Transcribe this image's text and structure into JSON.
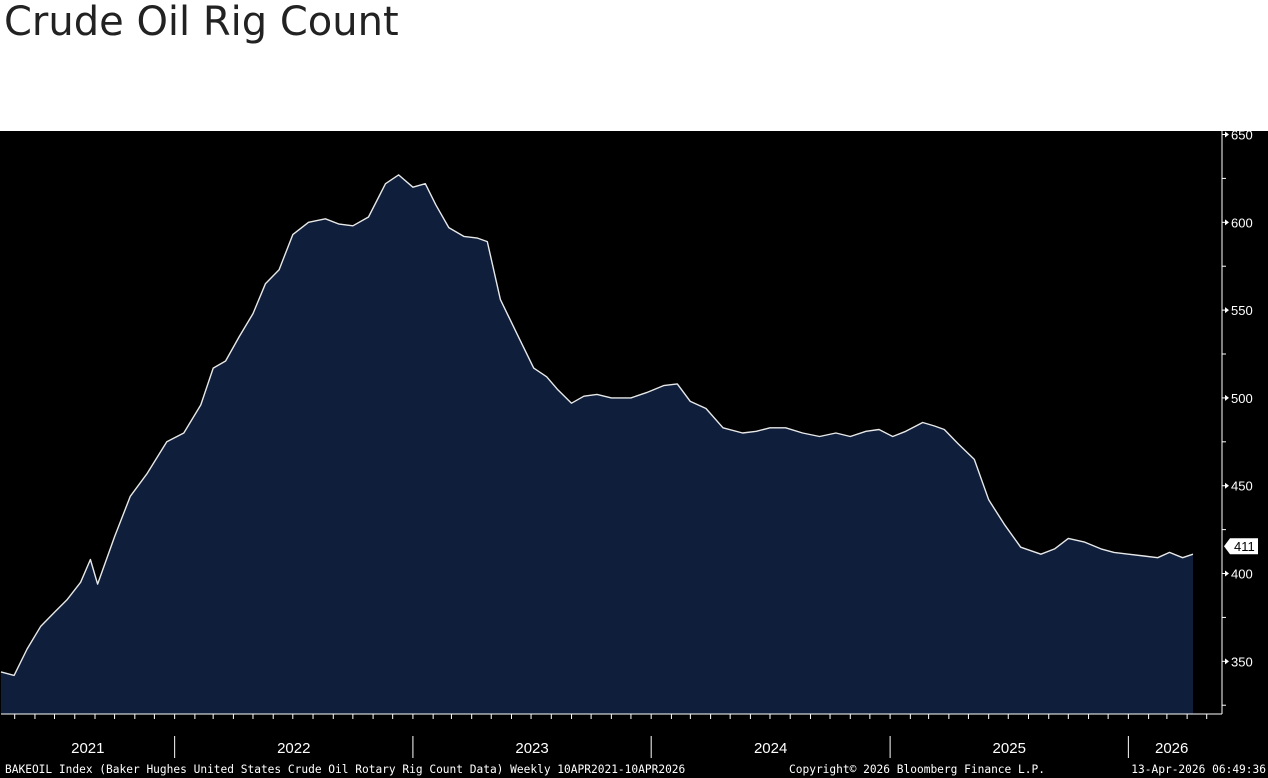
{
  "page": {
    "title": "Crude Oil Rig Count"
  },
  "footer": {
    "description": "BAKEOIL Index (Baker Hughes United States Crude Oil Rotary Rig Count Data) Weekly 10APR2021-10APR2026",
    "copyright": "Copyright© 2026 Bloomberg Finance L.P.",
    "timestamp": "13-Apr-2026 06:49:36"
  },
  "colors": {
    "background": "#000000",
    "area_fill": "#0e1e3b",
    "line": "#e8e8e8",
    "axis": "#ffffff",
    "last_value_label_bg": "#ffffff",
    "last_value_label_text": "#000000"
  },
  "chart_data": {
    "type": "area",
    "title": "Crude Oil Rig Count",
    "xlabel": "",
    "ylabel": "",
    "frequency": "weekly",
    "x_range": [
      "2021-04-10",
      "2026-04-10"
    ],
    "ylim": [
      320,
      652
    ],
    "y_ticks": [
      350,
      400,
      450,
      500,
      550,
      600,
      650
    ],
    "x_tick_labels": [
      "2021",
      "2022",
      "2023",
      "2024",
      "2025",
      "2026"
    ],
    "grid": false,
    "legend": "none",
    "last_value": 411,
    "last_value_label": "411",
    "series": [
      {
        "points": [
          [
            "2021-04-10",
            344
          ],
          [
            "2021-04-30",
            342
          ],
          [
            "2021-05-20",
            357
          ],
          [
            "2021-06-10",
            370
          ],
          [
            "2021-07-01",
            378
          ],
          [
            "2021-07-20",
            385
          ],
          [
            "2021-08-10",
            395
          ],
          [
            "2021-08-25",
            408
          ],
          [
            "2021-09-05",
            394
          ],
          [
            "2021-10-01",
            421
          ],
          [
            "2021-10-25",
            444
          ],
          [
            "2021-11-20",
            457
          ],
          [
            "2021-12-20",
            475
          ],
          [
            "2022-01-15",
            480
          ],
          [
            "2022-02-10",
            496
          ],
          [
            "2022-03-01",
            517
          ],
          [
            "2022-03-20",
            521
          ],
          [
            "2022-04-10",
            535
          ],
          [
            "2022-05-01",
            548
          ],
          [
            "2022-05-20",
            565
          ],
          [
            "2022-06-10",
            573
          ],
          [
            "2022-07-01",
            593
          ],
          [
            "2022-07-25",
            600
          ],
          [
            "2022-08-20",
            602
          ],
          [
            "2022-09-10",
            599
          ],
          [
            "2022-10-01",
            598
          ],
          [
            "2022-10-25",
            603
          ],
          [
            "2022-11-20",
            622
          ],
          [
            "2022-12-10",
            627
          ],
          [
            "2023-01-01",
            620
          ],
          [
            "2023-01-20",
            622
          ],
          [
            "2023-02-05",
            610
          ],
          [
            "2023-02-25",
            597
          ],
          [
            "2023-03-20",
            592
          ],
          [
            "2023-04-10",
            591
          ],
          [
            "2023-04-25",
            589
          ],
          [
            "2023-05-15",
            556
          ],
          [
            "2023-06-10",
            536
          ],
          [
            "2023-07-05",
            517
          ],
          [
            "2023-07-25",
            512
          ],
          [
            "2023-08-10",
            505
          ],
          [
            "2023-09-01",
            497
          ],
          [
            "2023-09-20",
            501
          ],
          [
            "2023-10-10",
            502
          ],
          [
            "2023-11-01",
            500
          ],
          [
            "2023-12-01",
            500
          ],
          [
            "2023-12-25",
            503
          ],
          [
            "2024-01-20",
            507
          ],
          [
            "2024-02-10",
            508
          ],
          [
            "2024-03-01",
            498
          ],
          [
            "2024-03-25",
            494
          ],
          [
            "2024-04-20",
            483
          ],
          [
            "2024-05-20",
            480
          ],
          [
            "2024-06-10",
            481
          ],
          [
            "2024-07-01",
            483
          ],
          [
            "2024-07-25",
            483
          ],
          [
            "2024-08-20",
            480
          ],
          [
            "2024-09-15",
            478
          ],
          [
            "2024-10-10",
            480
          ],
          [
            "2024-11-01",
            478
          ],
          [
            "2024-11-25",
            481
          ],
          [
            "2024-12-15",
            482
          ],
          [
            "2025-01-05",
            478
          ],
          [
            "2025-01-25",
            481
          ],
          [
            "2025-02-20",
            486
          ],
          [
            "2025-03-10",
            484
          ],
          [
            "2025-03-25",
            482
          ],
          [
            "2025-04-15",
            474
          ],
          [
            "2025-05-10",
            465
          ],
          [
            "2025-06-01",
            442
          ],
          [
            "2025-06-25",
            428
          ],
          [
            "2025-07-20",
            415
          ],
          [
            "2025-08-20",
            411
          ],
          [
            "2025-09-10",
            414
          ],
          [
            "2025-10-01",
            420
          ],
          [
            "2025-10-25",
            418
          ],
          [
            "2025-11-20",
            414
          ],
          [
            "2025-12-10",
            412
          ],
          [
            "2026-01-01",
            411
          ],
          [
            "2026-01-25",
            410
          ],
          [
            "2026-02-15",
            409
          ],
          [
            "2026-03-05",
            412
          ],
          [
            "2026-03-25",
            409
          ],
          [
            "2026-04-10",
            411
          ]
        ]
      }
    ]
  }
}
